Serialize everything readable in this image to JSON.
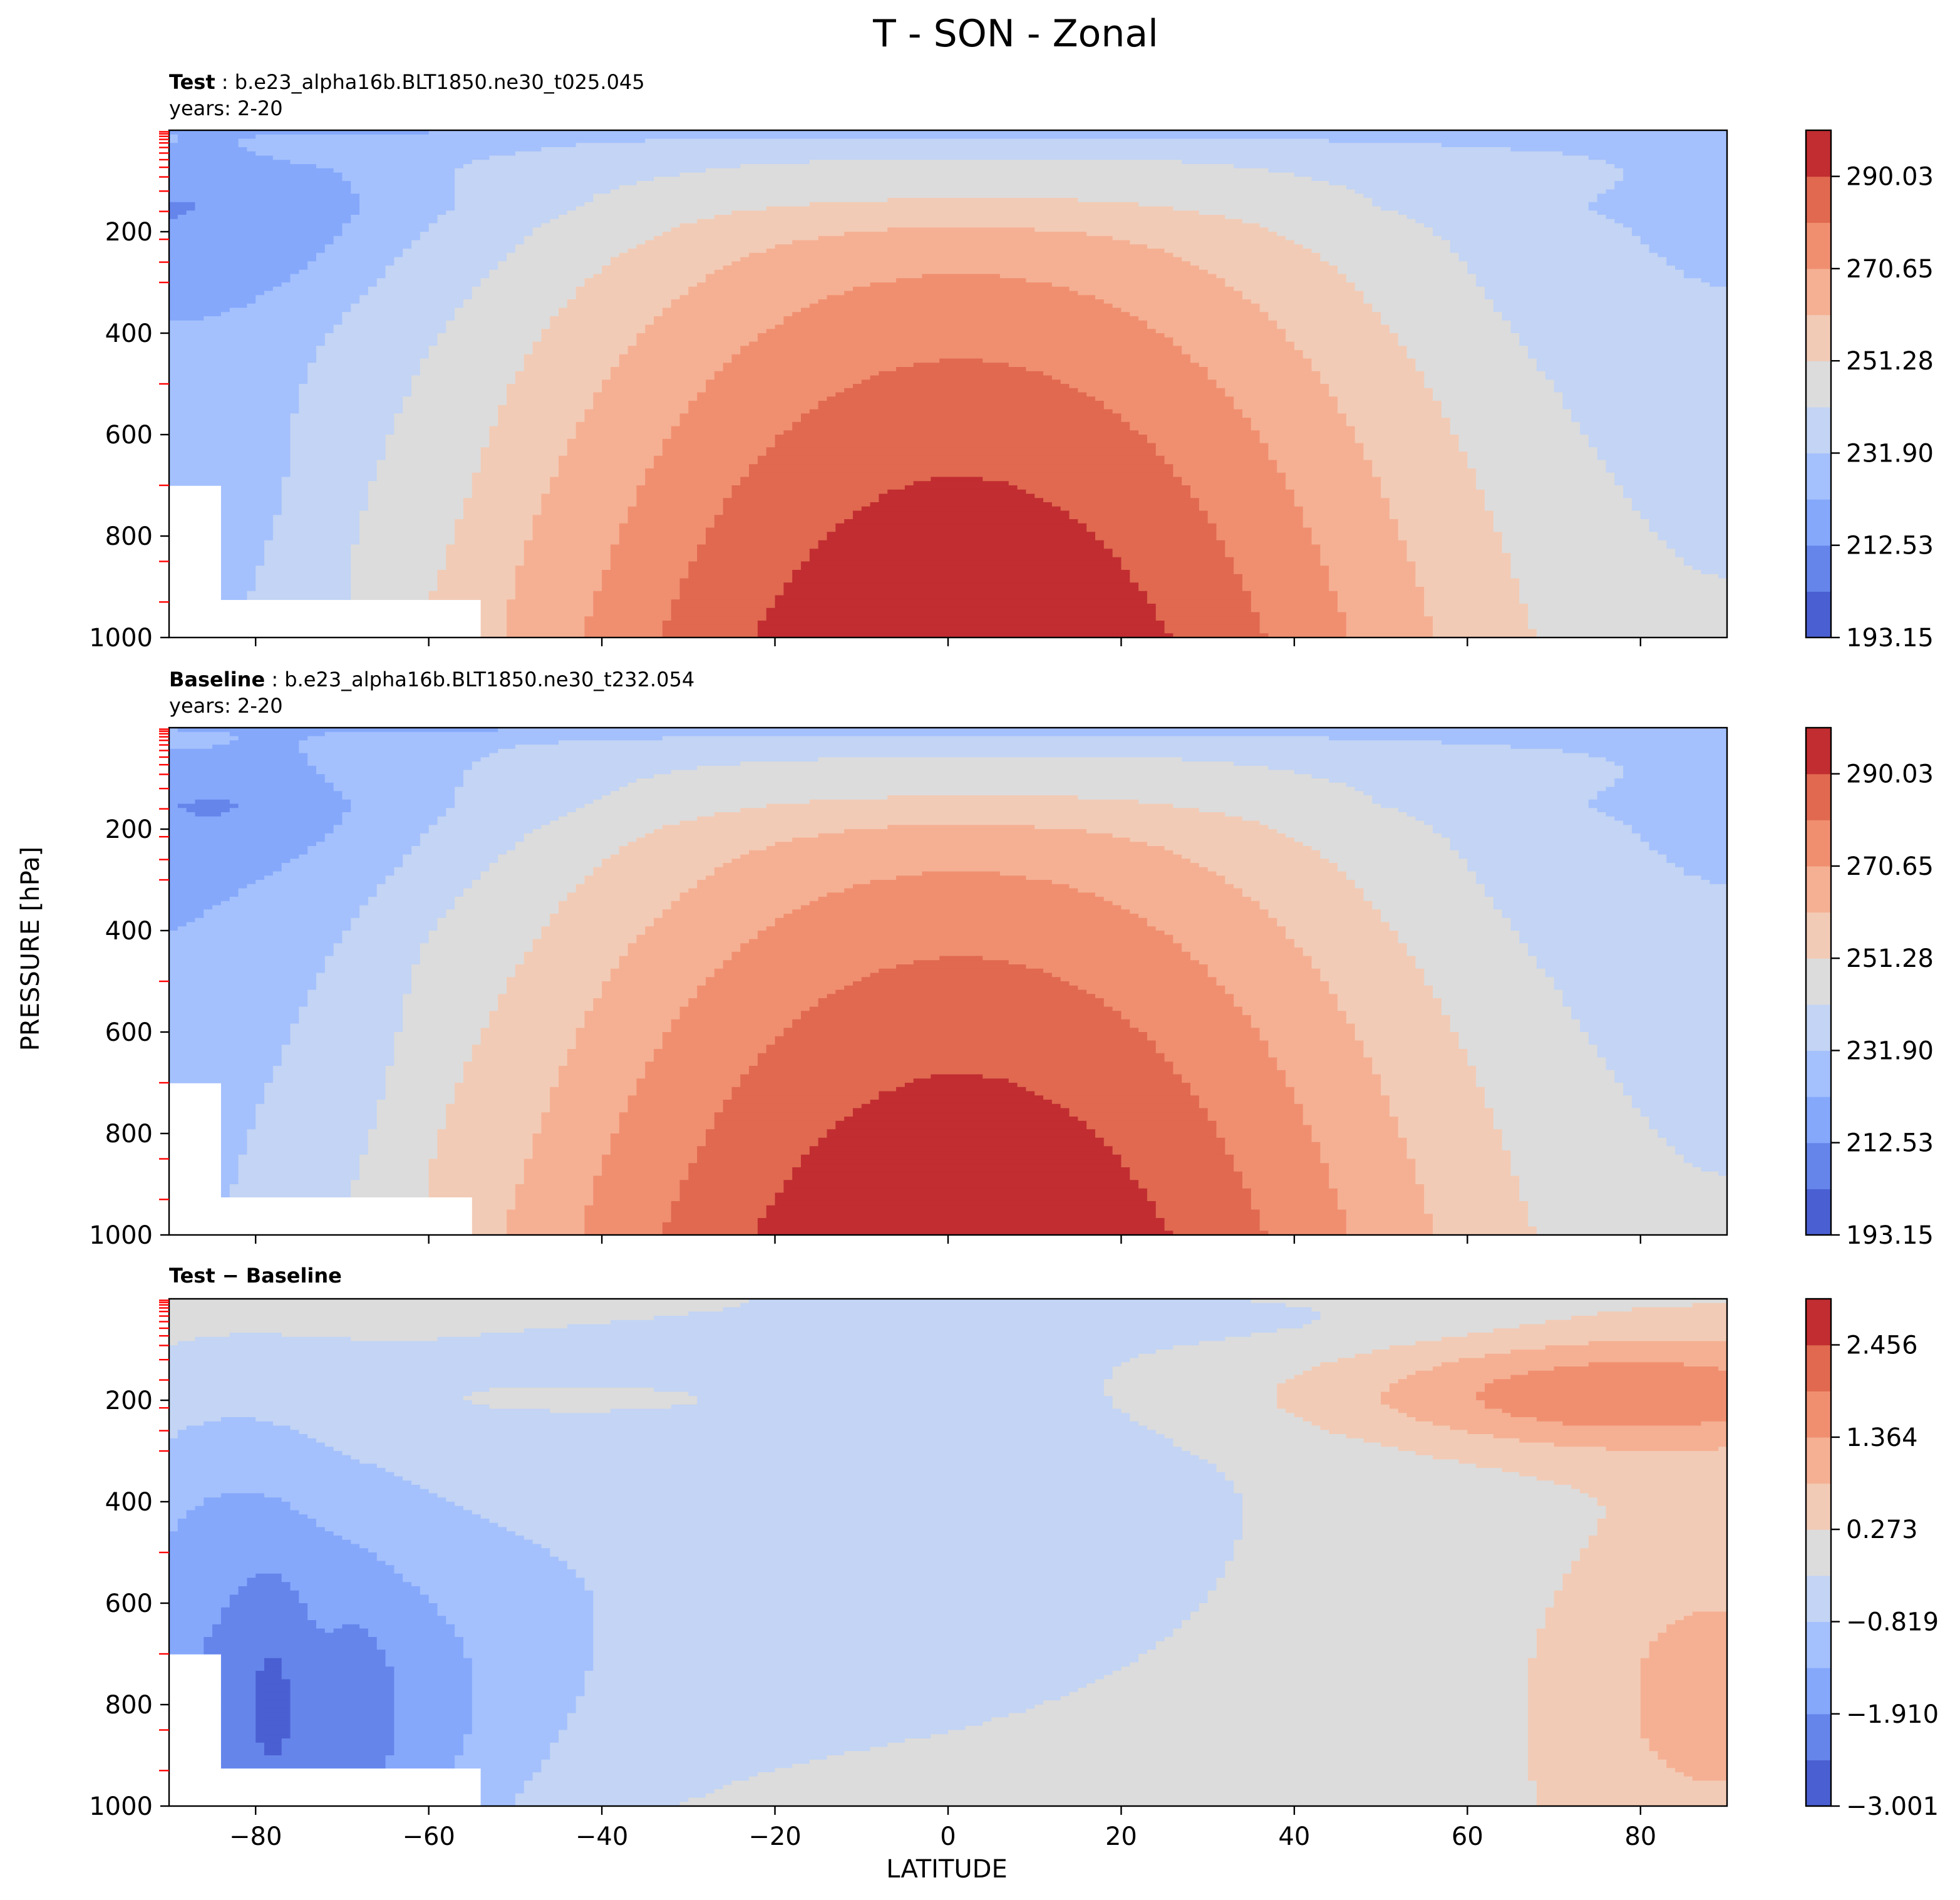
{
  "figure": {
    "title": "T - SON - Zonal",
    "ylabel": "PRESSURE [hPa]",
    "xlabel": "LATITUDE"
  },
  "chart_data": [
    {
      "type": "contourf",
      "id": "test",
      "title_bold": "Test",
      "title_rest": " : b.e23_alpha16b.BLT1850.ne30_t025.045",
      "subtitle": "years: 2-20",
      "xlim": [
        -90,
        90
      ],
      "ylim": [
        1000,
        0
      ],
      "xticks": [
        -80,
        -60,
        -40,
        -20,
        0,
        20,
        40,
        60,
        80
      ],
      "yticks": [
        200,
        400,
        600,
        800,
        1000
      ],
      "yticklabels": [
        "200",
        "400",
        "600",
        "800",
        "1000"
      ],
      "show_xticklabels": false,
      "colorbar": {
        "min": 193.15,
        "max": 299.72,
        "levels": 11,
        "ticks": [
          193.15,
          212.53,
          231.9,
          251.28,
          270.65,
          290.03
        ],
        "ticklabels": [
          "193.15",
          "212.53",
          "231.90",
          "251.28",
          "270.65",
          "290.03"
        ]
      },
      "field": {
        "kind": "temperature",
        "tmin": 193.15,
        "tmax": 299.72,
        "seed": 0
      }
    },
    {
      "type": "contourf",
      "id": "baseline",
      "title_bold": "Baseline",
      "title_rest": " : b.e23_alpha16b.BLT1850.ne30_t232.054",
      "subtitle": "years: 2-20",
      "xlim": [
        -90,
        90
      ],
      "ylim": [
        1000,
        0
      ],
      "xticks": [
        -80,
        -60,
        -40,
        -20,
        0,
        20,
        40,
        60,
        80
      ],
      "yticks": [
        200,
        400,
        600,
        800,
        1000
      ],
      "yticklabels": [
        "200",
        "400",
        "600",
        "800",
        "1000"
      ],
      "show_xticklabels": false,
      "colorbar": {
        "min": 193.15,
        "max": 299.72,
        "levels": 11,
        "ticks": [
          193.15,
          212.53,
          231.9,
          251.28,
          270.65,
          290.03
        ],
        "ticklabels": [
          "193.15",
          "212.53",
          "231.90",
          "251.28",
          "270.65",
          "290.03"
        ]
      },
      "field": {
        "kind": "temperature",
        "tmin": 193.15,
        "tmax": 299.72,
        "seed": 1
      }
    },
    {
      "type": "contourf",
      "id": "difference",
      "title_bold": "Test − Baseline",
      "title_rest": "",
      "subtitle": "",
      "xlim": [
        -90,
        90
      ],
      "ylim": [
        1000,
        0
      ],
      "xticks": [
        -80,
        -60,
        -40,
        -20,
        0,
        20,
        40,
        60,
        80
      ],
      "xticklabels": [
        "−80",
        "−60",
        "−40",
        "−20",
        "0",
        "20",
        "40",
        "60",
        "80"
      ],
      "yticks": [
        200,
        400,
        600,
        800,
        1000
      ],
      "yticklabels": [
        "200",
        "400",
        "600",
        "800",
        "1000"
      ],
      "show_xticklabels": true,
      "colorbar": {
        "min": -3.001,
        "max": 3.001,
        "levels": 11,
        "ticks": [
          -3.001,
          -1.91,
          -0.819,
          0.273,
          1.364,
          2.456
        ],
        "ticklabels": [
          "−3.001",
          "−1.910",
          "−0.819",
          "0.273",
          "1.364",
          "2.456"
        ]
      },
      "field": {
        "kind": "difference",
        "tmin": -3.001,
        "tmax": 3.001,
        "seed": 2
      }
    }
  ],
  "colormap": {
    "name": "coolwarm",
    "colors": [
      "#4a5fd1",
      "#6585eb",
      "#85a8fb",
      "#a4c1fd",
      "#c3d4f4",
      "#dcdcdc",
      "#f2cbb6",
      "#f5b093",
      "#f08f70",
      "#e06950",
      "#c12d31"
    ]
  }
}
